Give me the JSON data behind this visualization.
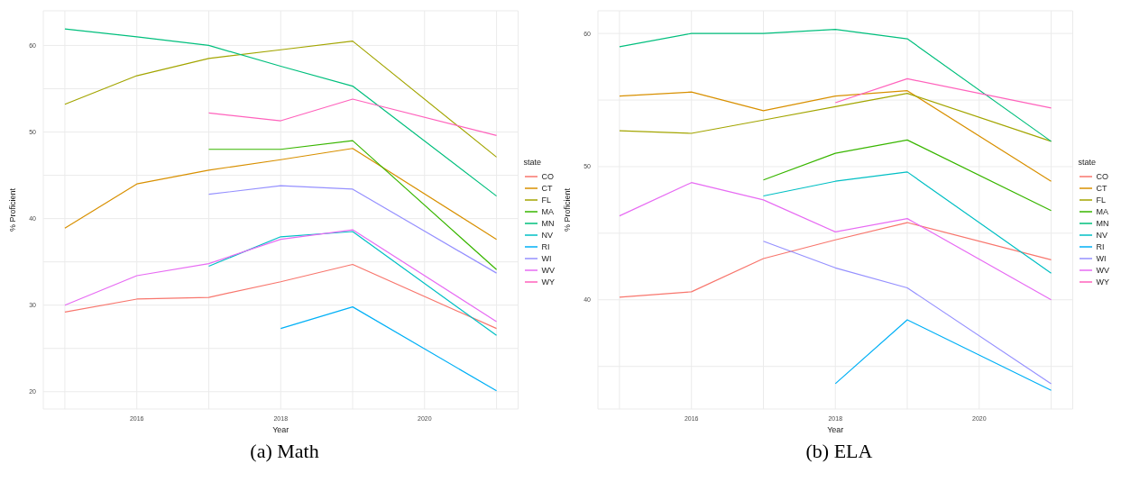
{
  "chart_data": [
    {
      "type": "line",
      "title": "(a) Math",
      "xlabel": "Year",
      "ylabel": "% Proficient",
      "legend_title": "state",
      "legend": "right",
      "grid": true,
      "xlim": [
        2014.7,
        2021.3
      ],
      "xticks": [
        {
          "value": 2015,
          "label": null
        },
        2016,
        {
          "value": 2017,
          "label": null
        },
        2018,
        {
          "value": 2019,
          "label": null
        },
        2020,
        {
          "value": 2021,
          "label": null
        }
      ],
      "ylim": [
        18,
        64
      ],
      "yticks": [
        20,
        {
          "value": 25,
          "label": null
        },
        30,
        {
          "value": 35,
          "label": null
        },
        40,
        {
          "value": 45,
          "label": null
        },
        50,
        {
          "value": 55,
          "label": null
        },
        60
      ],
      "series": [
        {
          "name": "CO",
          "color": "#f8766d",
          "x": [
            2015,
            2016,
            2017,
            2018,
            2019,
            2021
          ],
          "values": [
            29.2,
            30.7,
            30.9,
            32.7,
            34.7,
            27.3
          ]
        },
        {
          "name": "CT",
          "color": "#d89000",
          "x": [
            2015,
            2016,
            2017,
            2018,
            2019,
            2021
          ],
          "values": [
            38.9,
            44.0,
            45.6,
            46.8,
            48.1,
            37.6
          ]
        },
        {
          "name": "FL",
          "color": "#a3a500",
          "x": [
            2015,
            2016,
            2017,
            2018,
            2019,
            2021
          ],
          "values": [
            53.2,
            56.5,
            58.5,
            59.5,
            60.5,
            47.1
          ]
        },
        {
          "name": "MA",
          "color": "#39b600",
          "x": [
            2017,
            2018,
            2019,
            2021
          ],
          "values": [
            48.0,
            48.0,
            49.0,
            34.1
          ]
        },
        {
          "name": "MN",
          "color": "#00bf7d",
          "x": [
            2015,
            2016,
            2017,
            2018,
            2019,
            2021
          ],
          "values": [
            61.9,
            61.0,
            60.0,
            57.6,
            55.3,
            42.6
          ]
        },
        {
          "name": "NV",
          "color": "#00bfc4",
          "x": [
            2017,
            2018,
            2019,
            2021
          ],
          "values": [
            34.5,
            37.9,
            38.5,
            26.5
          ]
        },
        {
          "name": "RI",
          "color": "#00b0f6",
          "x": [
            2018,
            2019,
            2021
          ],
          "values": [
            27.3,
            29.8,
            20.1
          ]
        },
        {
          "name": "WI",
          "color": "#9590ff",
          "x": [
            2017,
            2018,
            2019,
            2021
          ],
          "values": [
            42.8,
            43.8,
            43.4,
            33.7
          ]
        },
        {
          "name": "WV",
          "color": "#e76bf3",
          "x": [
            2015,
            2016,
            2017,
            2018,
            2019,
            2021
          ],
          "values": [
            30.0,
            33.4,
            34.8,
            37.6,
            38.7,
            28.1
          ]
        },
        {
          "name": "WY",
          "color": "#ff62bc",
          "x": [
            2017,
            2018,
            2019,
            2021
          ],
          "values": [
            52.2,
            51.3,
            53.8,
            49.6
          ]
        }
      ]
    },
    {
      "type": "line",
      "title": "(b) ELA",
      "xlabel": "Year",
      "ylabel": "% Proficient",
      "legend_title": "state",
      "legend": "right",
      "grid": true,
      "xlim": [
        2014.7,
        2021.3
      ],
      "xticks": [
        {
          "value": 2015,
          "label": null
        },
        2016,
        {
          "value": 2017,
          "label": null
        },
        2018,
        {
          "value": 2019,
          "label": null
        },
        2020,
        {
          "value": 2021,
          "label": null
        }
      ],
      "ylim": [
        31.8,
        61.7
      ],
      "yticks": [
        {
          "value": 35,
          "label": null
        },
        40,
        {
          "value": 45,
          "label": null
        },
        50,
        {
          "value": 55,
          "label": null
        },
        60
      ],
      "series": [
        {
          "name": "CO",
          "color": "#f8766d",
          "x": [
            2015,
            2016,
            2017,
            2018,
            2019,
            2021
          ],
          "values": [
            40.2,
            40.6,
            43.1,
            44.5,
            45.8,
            43.0
          ]
        },
        {
          "name": "CT",
          "color": "#d89000",
          "x": [
            2015,
            2016,
            2017,
            2018,
            2019,
            2021
          ],
          "values": [
            55.3,
            55.6,
            54.2,
            55.3,
            55.7,
            48.9
          ]
        },
        {
          "name": "FL",
          "color": "#a3a500",
          "x": [
            2015,
            2016,
            2017,
            2018,
            2019,
            2021
          ],
          "values": [
            52.7,
            52.5,
            53.5,
            54.5,
            55.5,
            51.9
          ]
        },
        {
          "name": "MA",
          "color": "#39b600",
          "x": [
            2017,
            2018,
            2019,
            2021
          ],
          "values": [
            49.0,
            51.0,
            52.0,
            46.7
          ]
        },
        {
          "name": "MN",
          "color": "#00bf7d",
          "x": [
            2015,
            2016,
            2017,
            2018,
            2019,
            2021
          ],
          "values": [
            59.0,
            60.0,
            60.0,
            60.3,
            59.6,
            51.9
          ]
        },
        {
          "name": "NV",
          "color": "#00bfc4",
          "x": [
            2017,
            2018,
            2019,
            2021
          ],
          "values": [
            47.8,
            48.9,
            49.6,
            42.0
          ]
        },
        {
          "name": "RI",
          "color": "#00b0f6",
          "x": [
            2018,
            2019,
            2021
          ],
          "values": [
            33.7,
            38.5,
            33.2
          ]
        },
        {
          "name": "WI",
          "color": "#9590ff",
          "x": [
            2017,
            2018,
            2019,
            2021
          ],
          "values": [
            44.4,
            42.4,
            40.9,
            33.7
          ]
        },
        {
          "name": "WV",
          "color": "#e76bf3",
          "x": [
            2015,
            2016,
            2017,
            2018,
            2019,
            2021
          ],
          "values": [
            46.3,
            48.8,
            47.5,
            45.1,
            46.1,
            40.0
          ]
        },
        {
          "name": "WY",
          "color": "#ff62bc",
          "x": [
            2018,
            2019,
            2021
          ],
          "values": [
            54.8,
            56.6,
            54.4
          ]
        }
      ]
    }
  ]
}
